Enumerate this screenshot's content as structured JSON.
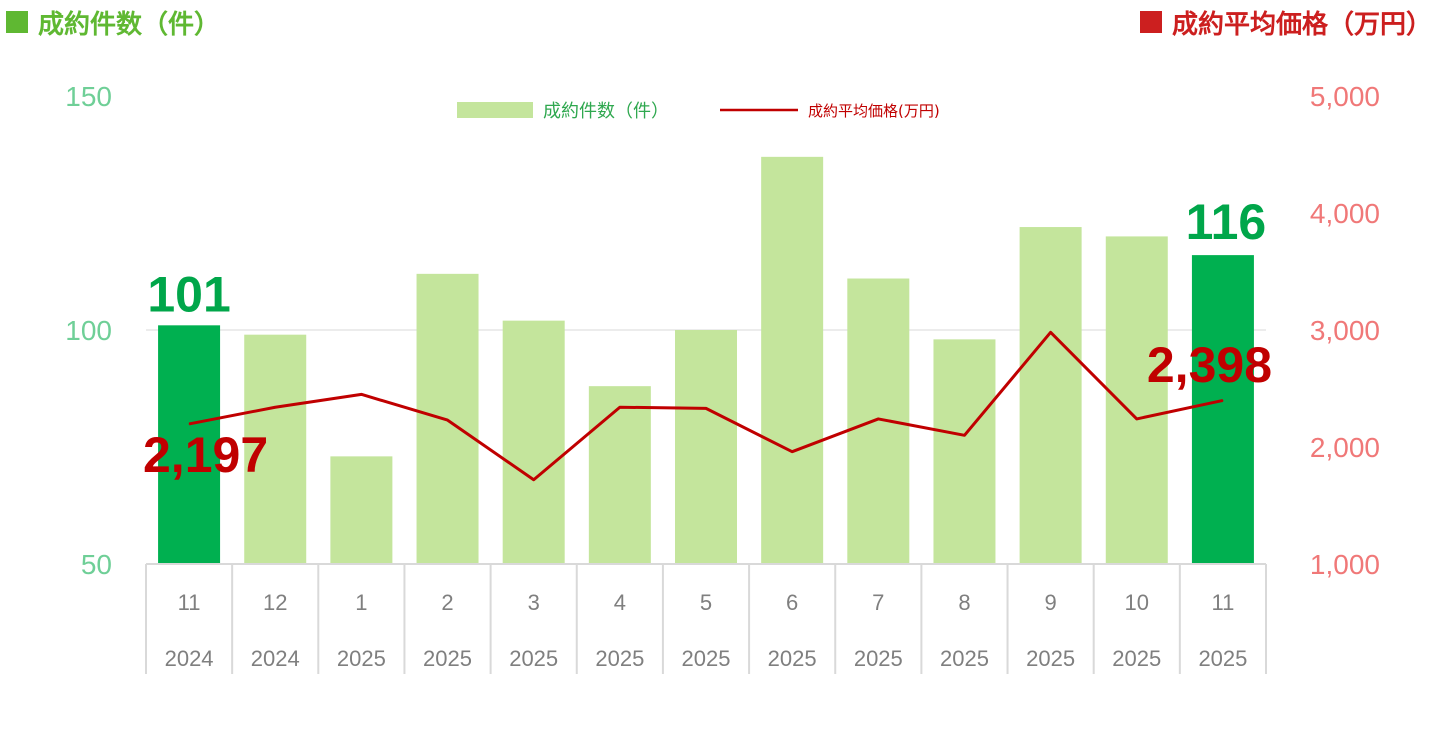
{
  "header": {
    "left_title": "成約件数（件）",
    "right_title": "成約平均価格（万円）"
  },
  "colors": {
    "bar": "#c4e59c",
    "bar_highlight": "#00b050",
    "line": "#c00000",
    "left_axis_text": "#6fcf97",
    "right_axis_text": "#f07878",
    "header_left": "#5fb832",
    "header_right": "#cc1f1f"
  },
  "chart_data": {
    "type": "bar",
    "categories": [
      {
        "month": "11",
        "year": "2024"
      },
      {
        "month": "12",
        "year": "2024"
      },
      {
        "month": "1",
        "year": "2025"
      },
      {
        "month": "2",
        "year": "2025"
      },
      {
        "month": "3",
        "year": "2025"
      },
      {
        "month": "4",
        "year": "2025"
      },
      {
        "month": "5",
        "year": "2025"
      },
      {
        "month": "6",
        "year": "2025"
      },
      {
        "month": "7",
        "year": "2025"
      },
      {
        "month": "8",
        "year": "2025"
      },
      {
        "month": "9",
        "year": "2025"
      },
      {
        "month": "10",
        "year": "2025"
      },
      {
        "month": "11",
        "year": "2025"
      }
    ],
    "series": [
      {
        "name": "成約件数（件）",
        "type": "bar",
        "axis": "left",
        "values": [
          101,
          99,
          73,
          112,
          102,
          88,
          100,
          137,
          111,
          98,
          122,
          120,
          116
        ],
        "highlight_indices": [
          0,
          12
        ]
      },
      {
        "name": "成約平均価格(万円)",
        "type": "line",
        "axis": "right",
        "values": [
          2197,
          2340,
          2450,
          2230,
          1720,
          2340,
          2330,
          1960,
          2240,
          2100,
          2980,
          2240,
          2398
        ]
      }
    ],
    "data_labels": [
      {
        "series": 0,
        "index": 0,
        "text": "101"
      },
      {
        "series": 0,
        "index": 12,
        "text": "116"
      },
      {
        "series": 1,
        "index": 0,
        "text": "2,197"
      },
      {
        "series": 1,
        "index": 12,
        "text": "2,398"
      }
    ],
    "left_axis": {
      "min": 50,
      "max": 150,
      "ticks": [
        "50",
        "100",
        "150"
      ],
      "tick_values": [
        50,
        100,
        150
      ]
    },
    "right_axis": {
      "min": 1000,
      "max": 5000,
      "ticks": [
        "1,000",
        "2,000",
        "3,000",
        "4,000",
        "5,000"
      ],
      "tick_values": [
        1000,
        2000,
        3000,
        4000,
        5000
      ]
    },
    "gridlines": [
      100
    ],
    "legend": {
      "position": "top-center",
      "bar_label": "成約件数（件）",
      "line_label": "成約平均価格(万円)"
    }
  }
}
